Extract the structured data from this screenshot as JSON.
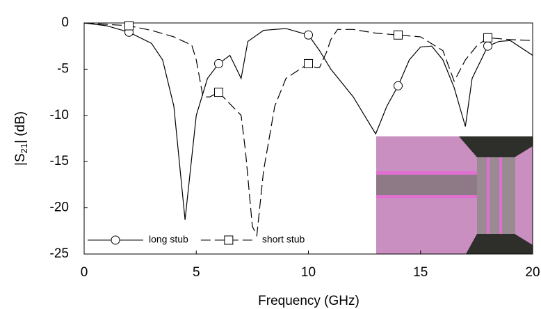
{
  "chart_data": {
    "type": "line",
    "xlabel": "Frequency (GHz)",
    "ylabel": {
      "main": "|S",
      "sub": "21",
      "end": "| (dB)"
    },
    "xlim": [
      0,
      20
    ],
    "ylim": [
      -25,
      0
    ],
    "xticks": [
      0,
      5,
      10,
      15,
      20
    ],
    "yticks": [
      0,
      -5,
      -10,
      -15,
      -20,
      -25
    ],
    "legend": "lower left",
    "series": [
      {
        "name": "long stub",
        "color": "#000",
        "dash": false,
        "marker": "circle",
        "markers": [
          2,
          6,
          10,
          14,
          18
        ],
        "x": [
          0,
          1,
          2,
          3,
          3.5,
          4,
          4.5,
          5,
          5.5,
          6,
          6.5,
          6.8,
          7,
          7.3,
          8,
          9,
          10,
          10.5,
          11,
          12,
          12.5,
          13,
          13.5,
          14,
          14.5,
          15,
          15.5,
          16,
          16.5,
          17,
          17.3,
          18,
          18.5,
          19,
          20
        ],
        "values": [
          0,
          -0.3,
          -1,
          -2.2,
          -4,
          -9,
          -21.3,
          -10,
          -6,
          -4.4,
          -3.5,
          -5,
          -6,
          -2,
          -0.8,
          -0.6,
          -1.3,
          -3,
          -5,
          -8,
          -10,
          -12,
          -9,
          -6.8,
          -4,
          -2.6,
          -2.5,
          -4,
          -7,
          -11.2,
          -6,
          -2.5,
          -2,
          -1.9,
          -3.5
        ]
      },
      {
        "name": "short stub",
        "color": "#000",
        "dash": true,
        "marker": "square",
        "markers": [
          2,
          6,
          10,
          14,
          18
        ],
        "x": [
          0,
          2,
          3,
          4,
          4.8,
          5,
          5.3,
          5.6,
          6,
          7,
          7.2,
          7.5,
          7.7,
          8,
          8.5,
          9,
          10,
          10.3,
          10.5,
          10.8,
          11,
          11.3,
          12,
          13,
          14,
          15,
          16,
          16.5,
          17,
          17.5,
          18,
          19,
          20
        ],
        "values": [
          0,
          -0.3,
          -0.8,
          -1.5,
          -2.4,
          -4,
          -8,
          -8,
          -7.5,
          -10,
          -14,
          -22,
          -23,
          -16,
          -9,
          -6,
          -4.4,
          -4.8,
          -4.8,
          -3.2,
          -1.8,
          -0.7,
          -0.7,
          -1.1,
          -1.3,
          -1.5,
          -3,
          -6.3,
          -4,
          -2.5,
          -1.6,
          -1.8,
          -1.9
        ]
      }
    ]
  }
}
